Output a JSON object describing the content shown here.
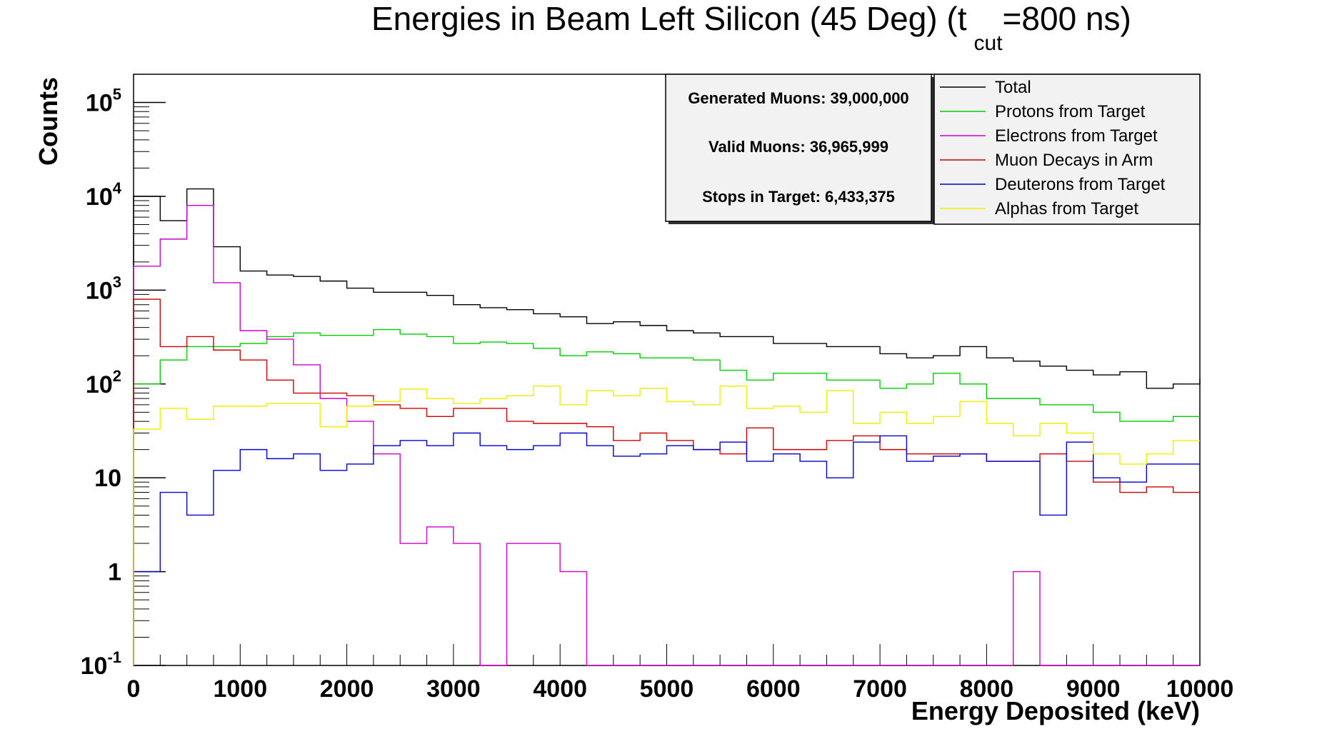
{
  "chart_data": {
    "type": "histogram",
    "title": {
      "main": "Energies in Beam Left Silicon (45 Deg) (t",
      "subscript": "cut",
      "suffix": "=800 ns)"
    },
    "xlabel": "Energy Deposited (keV)",
    "ylabel": "Counts",
    "xlim": [
      0,
      10000
    ],
    "ylim": [
      0.1,
      200000
    ],
    "y_scale": "log",
    "bin_width": 250,
    "bin_edges_start": 0,
    "x_ticks": [
      "0",
      "1000",
      "2000",
      "3000",
      "4000",
      "5000",
      "6000",
      "7000",
      "8000",
      "9000",
      "10000"
    ],
    "y_ticks": [
      {
        "base": "10",
        "exp": "-1"
      },
      {
        "base": "1",
        "exp": ""
      },
      {
        "base": "10",
        "exp": ""
      },
      {
        "base": "10",
        "exp": "2"
      },
      {
        "base": "10",
        "exp": "3"
      },
      {
        "base": "10",
        "exp": "4"
      },
      {
        "base": "10",
        "exp": "5"
      }
    ],
    "stats_box": {
      "line1": "Generated Muons: 39,000,000",
      "line2": "Valid Muons: 36,965,999",
      "line3": "Stops in Target: 6,433,375"
    },
    "legend_position": "top-right",
    "series": [
      {
        "name": "Total",
        "color": "#000000",
        "values": [
          10000,
          5500,
          12000,
          2900,
          1600,
          1450,
          1400,
          1250,
          1050,
          950,
          950,
          880,
          700,
          650,
          620,
          560,
          520,
          440,
          460,
          420,
          370,
          350,
          320,
          320,
          270,
          270,
          250,
          250,
          210,
          190,
          200,
          250,
          190,
          175,
          155,
          140,
          125,
          135,
          90,
          100,
          115
        ]
      },
      {
        "name": "Protons from Target",
        "color": "#00cc00",
        "values": [
          100,
          180,
          250,
          250,
          270,
          320,
          350,
          330,
          330,
          380,
          340,
          320,
          270,
          280,
          270,
          240,
          200,
          220,
          210,
          190,
          190,
          180,
          140,
          110,
          130,
          130,
          110,
          110,
          90,
          100,
          130,
          100,
          70,
          70,
          60,
          60,
          50,
          40,
          40,
          45,
          45
        ]
      },
      {
        "name": "Electrons from Target",
        "color": "#cc00cc",
        "values": [
          1800,
          3500,
          8000,
          1200,
          370,
          300,
          160,
          70,
          40,
          18,
          2,
          3,
          2,
          0,
          2,
          2,
          1,
          0,
          0,
          0,
          0,
          0,
          0,
          0,
          0,
          0,
          0,
          0,
          0,
          0,
          0,
          0,
          0,
          1,
          0,
          0,
          0,
          0,
          0,
          0,
          0
        ]
      },
      {
        "name": "Muon Decays in Arm",
        "color": "#cc0000",
        "values": [
          800,
          250,
          320,
          230,
          180,
          110,
          80,
          80,
          75,
          60,
          55,
          45,
          55,
          55,
          40,
          38,
          38,
          35,
          25,
          30,
          25,
          20,
          18,
          34,
          20,
          20,
          25,
          28,
          20,
          18,
          18,
          18,
          15,
          15,
          18,
          15,
          9,
          7,
          8,
          7,
          7
        ]
      },
      {
        "name": "Deuterons from Target",
        "color": "#0000cc",
        "values": [
          1,
          7,
          4,
          12,
          20,
          16,
          18,
          12,
          14,
          22,
          25,
          22,
          30,
          22,
          20,
          22,
          30,
          22,
          17,
          18,
          22,
          20,
          24,
          15,
          18,
          15,
          10,
          24,
          28,
          15,
          17,
          18,
          15,
          15,
          4,
          24,
          10,
          9,
          14,
          14,
          14
        ]
      },
      {
        "name": "Alphas from Target",
        "color": "#eeee00",
        "values": [
          33,
          55,
          42,
          58,
          58,
          62,
          62,
          35,
          58,
          65,
          88,
          70,
          62,
          70,
          75,
          95,
          60,
          85,
          75,
          90,
          65,
          60,
          95,
          55,
          58,
          50,
          85,
          38,
          50,
          38,
          45,
          65,
          38,
          28,
          38,
          30,
          18,
          14,
          18,
          25,
          25
        ]
      }
    ]
  }
}
